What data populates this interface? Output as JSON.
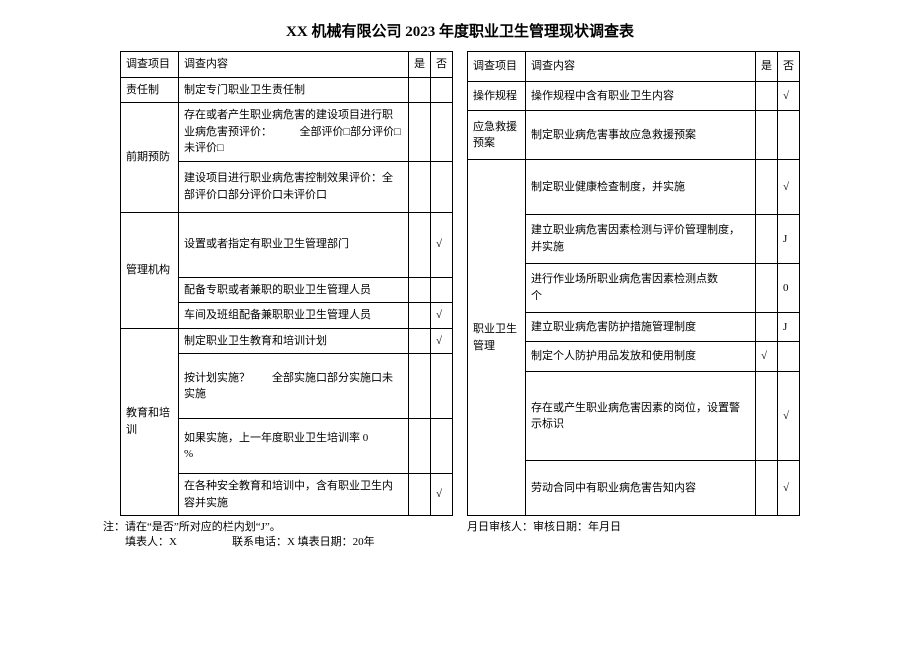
{
  "title": "XX 机械有限公司 2023 年度职业卫生管理现状调查表",
  "hdr": {
    "cat": "调查项目",
    "content": "调查内容",
    "yes": "是",
    "no": "否"
  },
  "left": {
    "cat1": "责任制",
    "r1_1": "制定专门职业卫生责任制",
    "cat2": "前期预防",
    "r2_1": "存在或者产生职业病危害的建设项目进行职业病危害预评价：　　　全部评价□部分评价□未评价□",
    "r2_2": "建设项目进行职业病危害控制效果评价：全部评价口部分评价口未评价口",
    "cat3": "管理机构",
    "r3_1": "设置或者指定有职业卫生管理部门",
    "r3_1_no": "√",
    "r3_2": "配备专职或者兼职的职业卫生管理人员",
    "r3_3": "车间及班组配备兼职职业卫生管理人员",
    "r3_3_no": "√",
    "cat4": "教育和培训",
    "r4_1": "制定职业卫生教育和培训计划",
    "r4_1_no": "√",
    "r4_2": "按计划实施？　　全部实施口部分实施口未实施",
    "r4_3": "如果实施，上一年度职业卫生培训率 0　　　　%",
    "r4_4": "在各种安全教育和培训中，含有职业卫生内容并实施",
    "r4_4_no": "√"
  },
  "right": {
    "cat1": "操作规程",
    "r1_1": "操作规程中含有职业卫生内容",
    "r1_1_no": "√",
    "cat2": "应急救援预案",
    "r2_1": "制定职业病危害事故应急救援预案",
    "cat3": "职业卫生管理",
    "r3_1": "制定职业健康检查制度，并实施",
    "r3_1_no": "√",
    "r3_2": "建立职业病危害因素检测与评价管理制度，并实施",
    "r3_2_no": "J",
    "r3_3": "进行作业场所职业病危害因素检测点数　　　　　个",
    "r3_3_no": "0",
    "r3_4": "建立职业病危害防护措施管理制度",
    "r3_4_no": "J",
    "r3_5": "制定个人防护用品发放和使用制度",
    "r3_5_yes": "√",
    "r3_6": "存在或产生职业病危害因素的岗位，设置警示标识",
    "r3_6_no": "√",
    "r3_7": "劳动合同中有职业病危害告知内容",
    "r3_7_no": "√"
  },
  "foot": {
    "l1": "注：请在“是否”所对应的栏内划“J”。",
    "l2": "　　填表人：X　　　　　联系电话：X 填表日期：20年",
    "r1": "月日审核人：审核日期：年月日"
  }
}
